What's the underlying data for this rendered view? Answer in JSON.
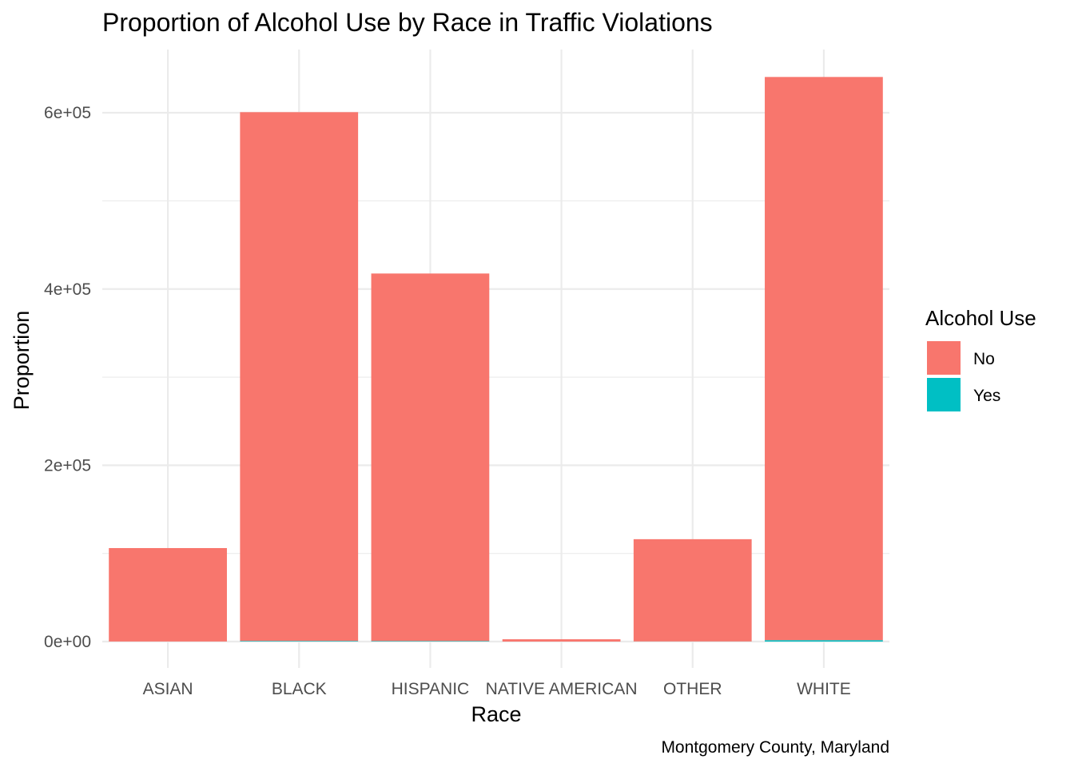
{
  "chart_data": {
    "type": "bar",
    "stacked": true,
    "title": "Proportion of Alcohol Use by Race in Traffic Violations",
    "xlabel": "Race",
    "ylabel": "Proportion",
    "caption": "Montgomery County, Maryland",
    "categories": [
      "ASIAN",
      "BLACK",
      "HISPANIC",
      "NATIVE AMERICAN",
      "OTHER",
      "WHITE"
    ],
    "series": [
      {
        "name": "No",
        "color": "#F8766D",
        "values": [
          106000,
          600000,
          417000,
          2600,
          116000,
          639000
        ]
      },
      {
        "name": "Yes",
        "color": "#00BFC4",
        "values": [
          80,
          700,
          600,
          5,
          150,
          1600
        ]
      }
    ],
    "ylim": [
      0,
      640000
    ],
    "yticks": [
      0,
      200000,
      400000,
      600000
    ],
    "ytick_labels": [
      "0e+00",
      "2e+05",
      "4e+05",
      "6e+05"
    ],
    "legend": {
      "title": "Alcohol Use",
      "placement": "right",
      "entries": [
        "No",
        "Yes"
      ]
    },
    "grid": true,
    "theme": "minimal"
  }
}
